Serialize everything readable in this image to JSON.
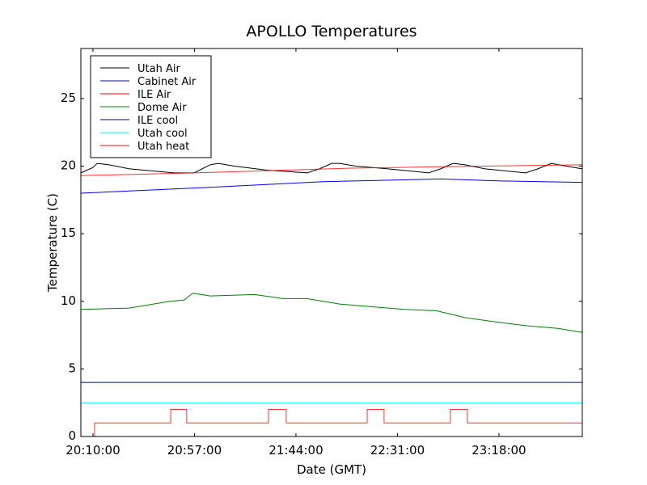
{
  "chart_data": {
    "type": "line",
    "title": "APOLLO Temperatures",
    "xlabel": "Date (GMT)",
    "ylabel": "Temperature (C)",
    "x_units": "minutes since 20:10:00",
    "xlim": [
      -5.6,
      226.6
    ],
    "ylim": [
      0,
      28.7
    ],
    "xticks": [
      {
        "v": 0,
        "label": "20:10:00"
      },
      {
        "v": 47,
        "label": "20:57:00"
      },
      {
        "v": 94,
        "label": "21:44:00"
      },
      {
        "v": 141,
        "label": "22:31:00"
      },
      {
        "v": 188,
        "label": "23:18:00"
      }
    ],
    "yticks": [
      {
        "v": 0,
        "label": "0"
      },
      {
        "v": 5,
        "label": "5"
      },
      {
        "v": 10,
        "label": "10"
      },
      {
        "v": 15,
        "label": "15"
      },
      {
        "v": 20,
        "label": "20"
      },
      {
        "v": 25,
        "label": "25"
      }
    ],
    "legend_position": "top-left",
    "series": [
      {
        "name": "Utah Air",
        "color": "#000000",
        "points": [
          [
            -5.6,
            19.5
          ],
          [
            0,
            19.9
          ],
          [
            1.9,
            20.2
          ],
          [
            7.5,
            20.1
          ],
          [
            16.9,
            19.8
          ],
          [
            37.5,
            19.5
          ],
          [
            46.8,
            19.5
          ],
          [
            54.3,
            20.1
          ],
          [
            58,
            20.2
          ],
          [
            65.5,
            20.0
          ],
          [
            80.5,
            19.7
          ],
          [
            99.2,
            19.5
          ],
          [
            104.9,
            19.8
          ],
          [
            110.5,
            20.2
          ],
          [
            114.2,
            20.2
          ],
          [
            121.7,
            20.0
          ],
          [
            136.7,
            19.8
          ],
          [
            155.4,
            19.5
          ],
          [
            161,
            19.8
          ],
          [
            166.7,
            20.2
          ],
          [
            172.3,
            20.1
          ],
          [
            181.6,
            19.8
          ],
          [
            200.4,
            19.5
          ],
          [
            206,
            19.8
          ],
          [
            212.3,
            20.2
          ],
          [
            219.1,
            20.0
          ],
          [
            226.6,
            19.8
          ]
        ]
      },
      {
        "name": "Cabinet Air",
        "color": "#0000ff",
        "points": [
          [
            -5.6,
            18.0
          ],
          [
            50,
            18.4
          ],
          [
            106.7,
            18.85
          ],
          [
            161,
            19.05
          ],
          [
            189,
            18.9
          ],
          [
            226.6,
            18.8
          ]
        ]
      },
      {
        "name": "ILE Air",
        "color": "#ff0000",
        "points": [
          [
            -5.6,
            19.3
          ],
          [
            46.8,
            19.5
          ],
          [
            120,
            19.85
          ],
          [
            180,
            20.0
          ],
          [
            226.6,
            20.1
          ]
        ]
      },
      {
        "name": "Dome Air",
        "color": "#008000",
        "points": [
          [
            -5.6,
            9.4
          ],
          [
            16.9,
            9.5
          ],
          [
            35.6,
            10.0
          ],
          [
            42.3,
            10.1
          ],
          [
            46.1,
            10.6
          ],
          [
            54.3,
            10.4
          ],
          [
            74.9,
            10.5
          ],
          [
            88,
            10.2
          ],
          [
            99.2,
            10.2
          ],
          [
            114.2,
            9.8
          ],
          [
            129.2,
            9.6
          ],
          [
            144.2,
            9.4
          ],
          [
            159.2,
            9.3
          ],
          [
            172.3,
            8.8
          ],
          [
            185.4,
            8.5
          ],
          [
            200.4,
            8.2
          ],
          [
            215.3,
            8.0
          ],
          [
            226.6,
            7.7
          ]
        ]
      },
      {
        "name": "ILE cool",
        "color": "#000080",
        "points": [
          [
            -5.6,
            4.0
          ],
          [
            226.6,
            4.0
          ]
        ]
      },
      {
        "name": "Utah cool",
        "color": "#00ffff",
        "points": [
          [
            -5.6,
            2.5
          ],
          [
            226.6,
            2.5
          ]
        ]
      },
      {
        "name": "Utah heat",
        "color": "#ff0000",
        "step": true,
        "points": [
          [
            -5.6,
            0
          ],
          [
            0.75,
            1
          ],
          [
            36,
            2
          ],
          [
            43.4,
            1
          ],
          [
            81.3,
            2
          ],
          [
            89.5,
            1
          ],
          [
            127,
            2
          ],
          [
            134.8,
            1
          ],
          [
            165.5,
            2
          ],
          [
            173.4,
            1
          ],
          [
            226.6,
            1
          ]
        ]
      }
    ]
  }
}
